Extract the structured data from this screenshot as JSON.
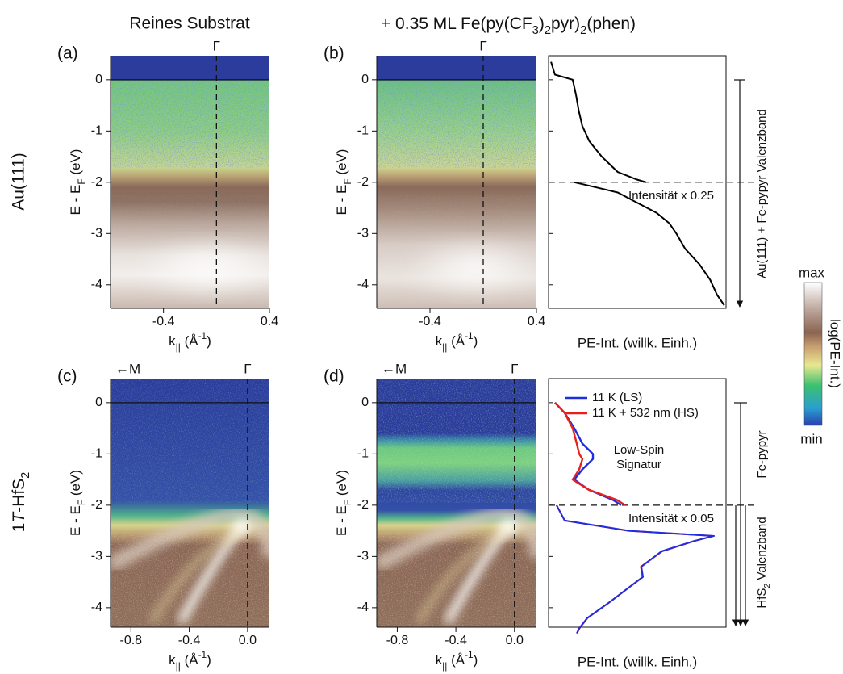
{
  "titles": {
    "left": "Reines Substrat",
    "right": [
      "+ 0.35 ML Fe(py(CF",
      {
        "text": "3",
        "shift": "sub"
      },
      ")",
      {
        "text": "2",
        "shift": "sub"
      },
      "pyr)",
      {
        "text": "2",
        "shift": "sub"
      },
      "(phen)"
    ]
  },
  "row_labels": [
    "Au(111)",
    [
      "1",
      {
        "text": "T",
        "style": "italic"
      },
      "-HfS",
      {
        "text": "2",
        "shift": "sub"
      }
    ]
  ],
  "colorbar": {
    "max": "max",
    "min": "min",
    "label": "log(PE-Int.)"
  },
  "chart_data": [
    {
      "type": "image",
      "label": "(a)",
      "gamma": "Γ",
      "gamma_k": 0,
      "fermi_level": 0,
      "xlim": [
        -0.8,
        0.4
      ],
      "xticks": [
        -0.4,
        0.4
      ],
      "ylim": [
        -4.46,
        0.47
      ],
      "yticks": [
        0,
        -1,
        -2,
        -3,
        -4
      ],
      "xlabel": [
        "k",
        {
          "text": "||",
          "shift": "sub"
        },
        " (Å",
        {
          "text": "-1",
          "shift": "super"
        },
        ")"
      ],
      "ylabel": [
        "E - E",
        {
          "text": "F",
          "shift": "sub"
        },
        " (eV)"
      ]
    },
    {
      "type": "image",
      "label": "(b)",
      "gamma": "Γ",
      "gamma_k": 0,
      "fermi_level": 0,
      "xlim": [
        -0.8,
        0.4
      ],
      "xticks": [
        -0.4,
        0.4
      ],
      "ylim": [
        -4.46,
        0.47
      ],
      "yticks": [
        0,
        -1,
        -2,
        -3,
        -4
      ],
      "xlabel": [
        "k",
        {
          "text": "||",
          "shift": "sub"
        },
        " (Å",
        {
          "text": "-1",
          "shift": "super"
        },
        ")"
      ],
      "ylabel": [
        "E - E",
        {
          "text": "F",
          "shift": "sub"
        },
        " (eV)"
      ]
    },
    {
      "type": "line",
      "xlim": [
        0,
        100
      ],
      "ylim": [
        -4.46,
        0.47
      ],
      "yticks": [
        0,
        -1,
        -2,
        -3,
        -4
      ],
      "xlabel": "PE-Int. (willk. Einh.)",
      "scale_break": -2,
      "scale_note": "Intensität x 0.25",
      "side_labels": [
        "Au(111) + Fe-pypyr Valenzband"
      ],
      "series": [
        {
          "color": "#000000",
          "x": [
            0.35,
            0.1,
            0.0,
            -0.3,
            -0.6,
            -0.9,
            -1.2,
            -1.5,
            -1.8,
            -1.95,
            -2.0
          ],
          "values": [
            1.4,
            3.6,
            13.6,
            15.5,
            17,
            19,
            23,
            30,
            39,
            50,
            55
          ]
        },
        {
          "color": "#000000",
          "x": [
            -2.0,
            -2.1,
            -2.2,
            -2.4,
            -2.6,
            -2.8,
            -3.0,
            -3.3,
            -3.6,
            -3.9,
            -4.2,
            -4.4
          ],
          "values": [
            14.5,
            27,
            39,
            50,
            61,
            68,
            72,
            77,
            85,
            91,
            95,
            99
          ]
        }
      ]
    },
    {
      "type": "image",
      "label": "(c)",
      "gamma": "Γ",
      "gamma_k": 0,
      "fermi_level": 0,
      "m_label": "←M",
      "xlim": [
        -0.94,
        0.15
      ],
      "xticks": [
        -0.8,
        -0.4,
        {
          "value": 0,
          "label": "0.0"
        }
      ],
      "ylim": [
        -4.38,
        0.47
      ],
      "yticks": [
        0,
        -1,
        -2,
        -3,
        -4
      ],
      "xlabel": [
        "k",
        {
          "text": "||",
          "shift": "sub"
        },
        " (Å",
        {
          "text": "-1",
          "shift": "super"
        },
        ")"
      ],
      "ylabel": [
        "E - E",
        {
          "text": "F",
          "shift": "sub"
        },
        " (eV)"
      ]
    },
    {
      "type": "image",
      "label": "(d)",
      "gamma": "Γ",
      "gamma_k": 0,
      "fermi_level": 0,
      "m_label": "←M",
      "xlim": [
        -0.94,
        0.15
      ],
      "xticks": [
        -0.8,
        -0.4,
        {
          "value": 0,
          "label": "0.0"
        }
      ],
      "ylim": [
        -4.38,
        0.47
      ],
      "yticks": [
        0,
        -1,
        -2,
        -3,
        -4
      ],
      "xlabel": [
        "k",
        {
          "text": "||",
          "shift": "sub"
        },
        " (Å",
        {
          "text": "-1",
          "shift": "super"
        },
        ")"
      ],
      "ylabel": [
        "E - E",
        {
          "text": "F",
          "shift": "sub"
        },
        " (eV)"
      ]
    },
    {
      "type": "line",
      "xlim": [
        0,
        100
      ],
      "ylim": [
        -4.38,
        0.47
      ],
      "yticks": [
        0,
        -1,
        -2,
        -3,
        -4
      ],
      "xlabel": "PE-Int. (willk. Einh.)",
      "scale_break": -2,
      "scale_note": "Intensität x 0.05",
      "annotation": [
        "Low-Spin",
        "Signatur"
      ],
      "side_labels": [
        "Fe-pypyr",
        [
          "HfS",
          {
            "text": "2",
            "shift": "sub"
          },
          " Valenzband"
        ]
      ],
      "series": [
        {
          "name": "11 K (LS)",
          "color": "#1f2de0",
          "x": [
            0.0,
            -0.2,
            -0.5,
            -0.8,
            -1.0,
            -1.1,
            -1.3,
            -1.5,
            -1.7,
            -1.9,
            -2.0
          ],
          "values": [
            3.6,
            9.1,
            14.5,
            19.1,
            25,
            25,
            19.1,
            14.5,
            22.7,
            36.4,
            40.9
          ]
        },
        {
          "name": "11 K + 532 nm (HS)",
          "color": "#e8201c",
          "x": [
            0.0,
            -0.2,
            -0.5,
            -0.8,
            -1.0,
            -1.1,
            -1.3,
            -1.5,
            -1.7,
            -1.9,
            -2.0
          ],
          "values": [
            3.6,
            9.1,
            13.6,
            15.9,
            17.3,
            19.1,
            17.3,
            13.6,
            22.7,
            38.6,
            43.2
          ]
        },
        {
          "color": "#e8201c",
          "x": [
            -2.0,
            -2.3,
            -2.5,
            -2.6,
            -2.7,
            -2.9,
            -3.2,
            -3.4,
            -3.6,
            -3.9,
            -4.2,
            -4.4,
            -4.5
          ],
          "values": [
            4.5,
            9.1,
            45,
            93,
            82,
            64,
            52,
            53,
            45.5,
            34,
            22,
            17.5,
            16
          ]
        },
        {
          "color": "#1f2de0",
          "x": [
            -2.0,
            -2.3,
            -2.5,
            -2.6,
            -2.7,
            -2.9,
            -3.2,
            -3.4,
            -3.6,
            -3.9,
            -4.2,
            -4.4,
            -4.5
          ],
          "values": [
            4.5,
            9.1,
            45.5,
            93.2,
            81.8,
            63.6,
            52.3,
            53.2,
            45.5,
            34.1,
            21.8,
            17.3,
            15.9
          ]
        }
      ]
    }
  ]
}
